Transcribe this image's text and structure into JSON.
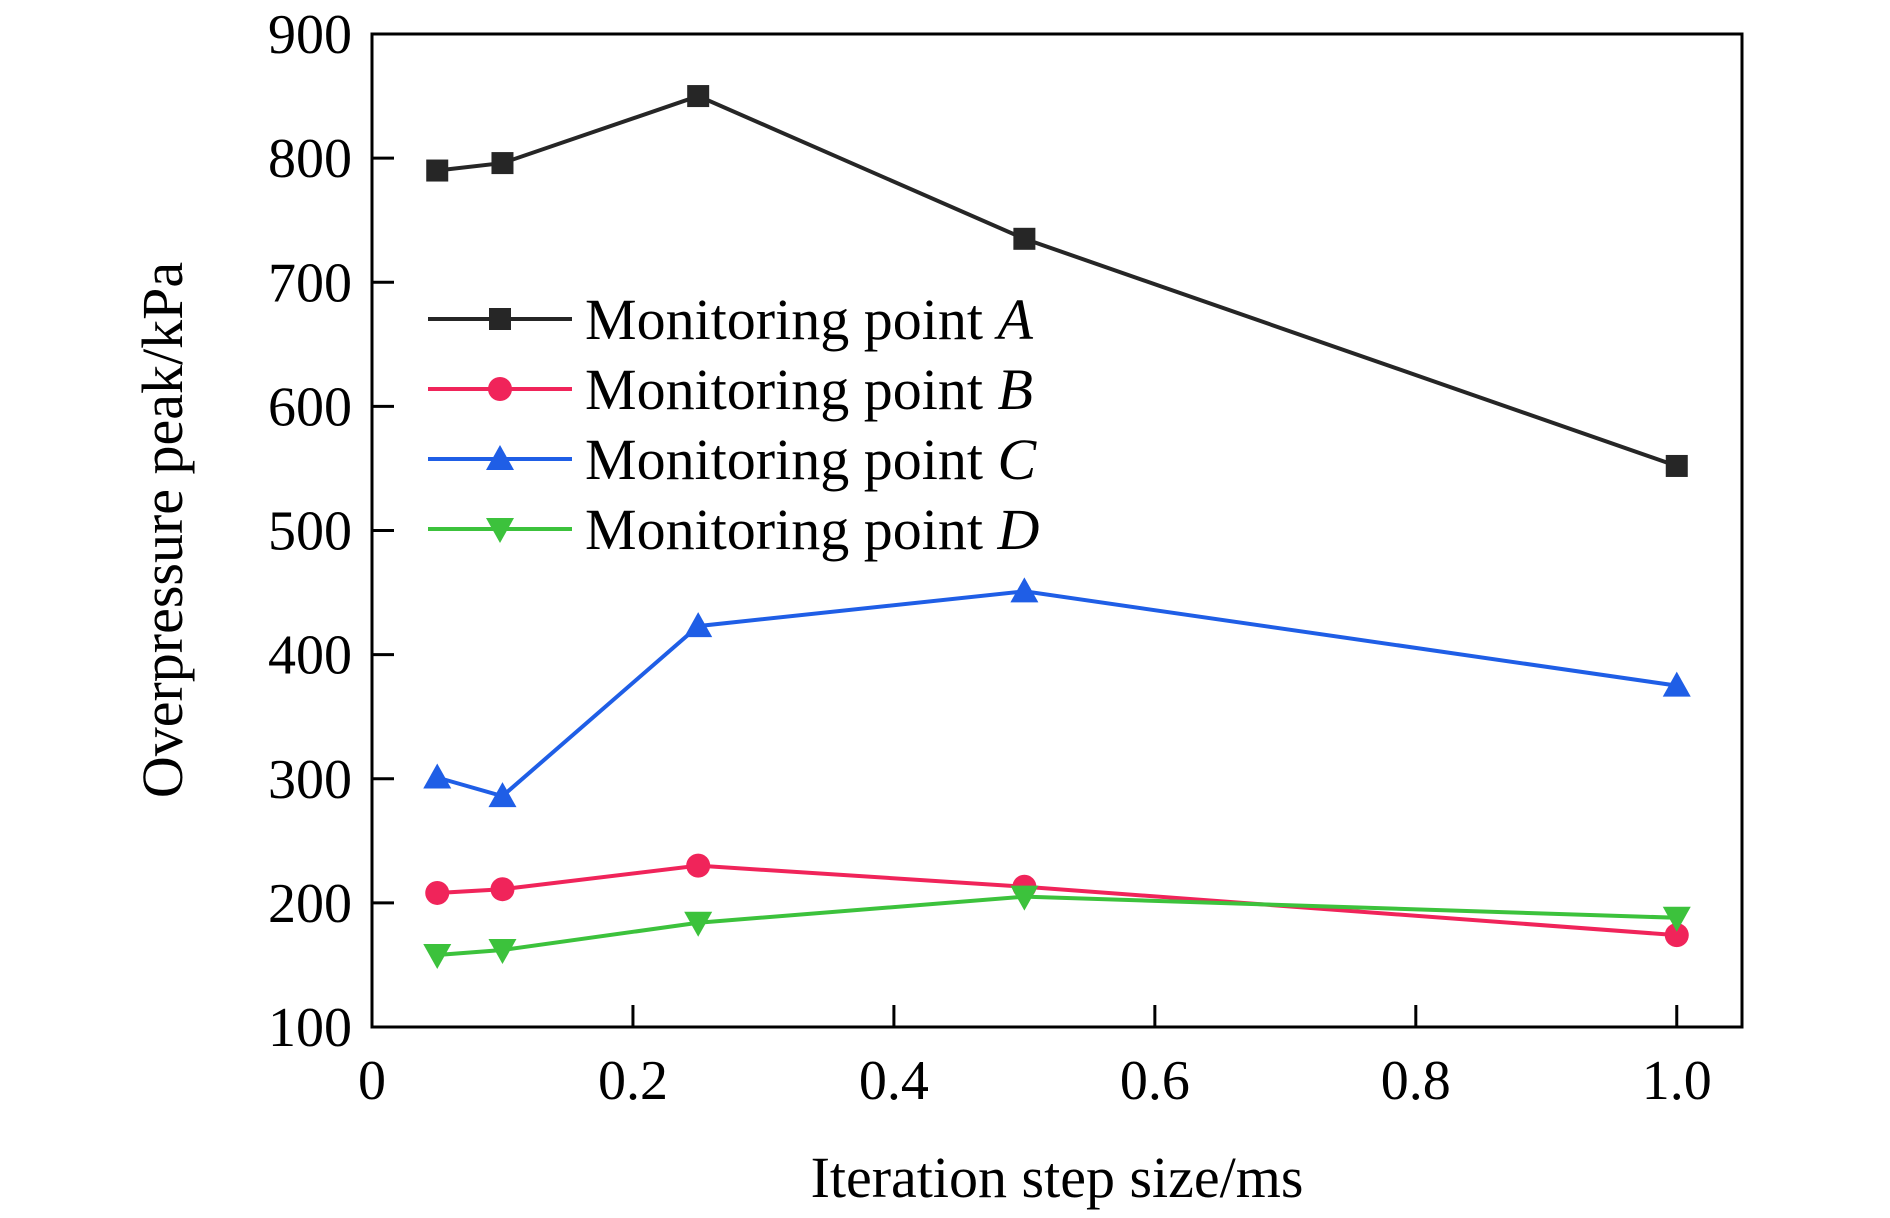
{
  "chart_data": {
    "type": "line",
    "xlabel": "Iteration step size/ms",
    "ylabel": "Overpressure peak/kPa",
    "xlim": [
      0,
      1.05
    ],
    "ylim": [
      100,
      900
    ],
    "x_ticks": [
      0,
      0.2,
      0.4,
      0.6,
      0.8,
      1.0
    ],
    "x_tick_labels": [
      "0",
      "0.2",
      "0.4",
      "0.6",
      "0.8",
      "1.0"
    ],
    "y_ticks": [
      100,
      200,
      300,
      400,
      500,
      600,
      700,
      800,
      900
    ],
    "y_tick_labels": [
      "100",
      "200",
      "300",
      "400",
      "500",
      "600",
      "700",
      "800",
      "900"
    ],
    "x": [
      0.05,
      0.1,
      0.25,
      0.5,
      1.0
    ],
    "legend_position": "upper-left",
    "grid": false,
    "series": [
      {
        "name_prefix": "Monitoring point ",
        "name_italic": "A",
        "color": "#262626",
        "marker": "square",
        "values": [
          790,
          796,
          850,
          735,
          552
        ]
      },
      {
        "name_prefix": "Monitoring point ",
        "name_italic": "B",
        "color": "#f0245a",
        "marker": "circle",
        "values": [
          208,
          211,
          230,
          213,
          174
        ]
      },
      {
        "name_prefix": "Monitoring point ",
        "name_italic": "C",
        "color": "#1f5ee6",
        "marker": "triangle-up",
        "values": [
          301,
          286,
          423,
          451,
          375
        ]
      },
      {
        "name_prefix": "Monitoring point ",
        "name_italic": "D",
        "color": "#3cc23c",
        "marker": "triangle-down",
        "values": [
          158,
          162,
          184,
          205,
          188
        ]
      }
    ]
  }
}
